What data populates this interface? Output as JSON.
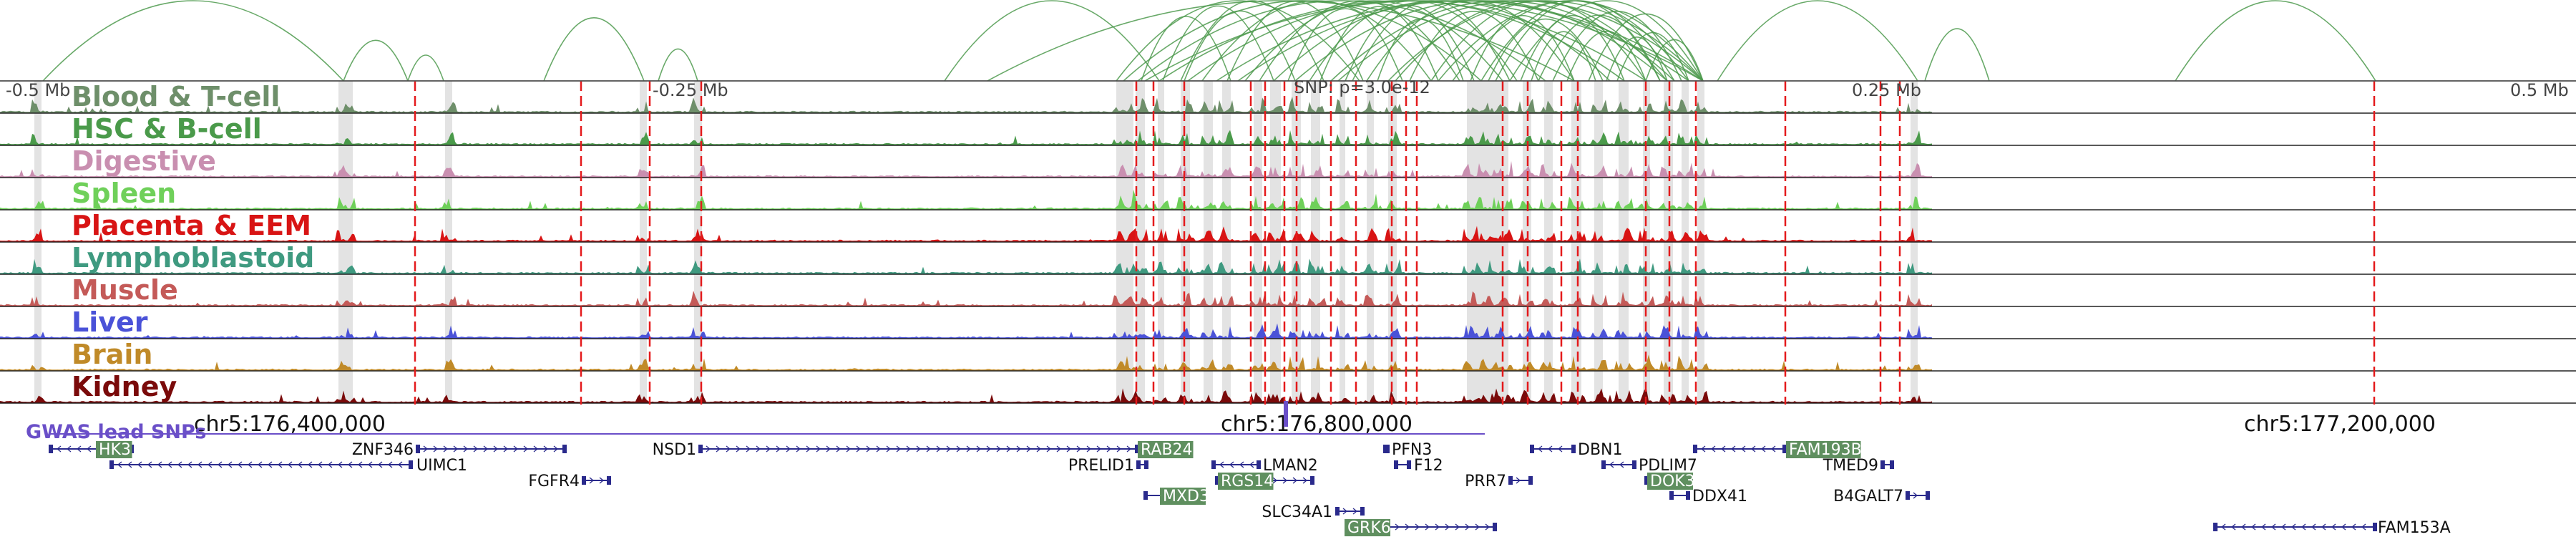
{
  "distance_labels": {
    "left_far": "-0.5 Mb",
    "left_near": "-0.25 Mb",
    "snp": "SNP: p=3.0e-12",
    "right_near": "0.25 Mb",
    "right_far": "0.5 Mb"
  },
  "tracks": [
    {
      "name": "Blood & T-cell",
      "color": "#6e8f6a"
    },
    {
      "name": "HSC & B-cell",
      "color": "#4a9a4a"
    },
    {
      "name": "Digestive",
      "color": "#c98fb0"
    },
    {
      "name": "Spleen",
      "color": "#6fd05a"
    },
    {
      "name": "Placenta & EEM",
      "color": "#d81414"
    },
    {
      "name": "Lymphoblastoid",
      "color": "#3f9a80"
    },
    {
      "name": "Muscle",
      "color": "#c45a58"
    },
    {
      "name": "Liver",
      "color": "#4a52d8"
    },
    {
      "name": "Brain",
      "color": "#c08a28"
    },
    {
      "name": "Kidney",
      "color": "#7a0a0a"
    }
  ],
  "coordinates": {
    "left": "chr5:176,400,000",
    "center": "chr5:176,800,000",
    "right": "chr5:177,200,000"
  },
  "gwas_label": "GWAS lead SNPs",
  "genes": [
    {
      "name": "HK3",
      "highlighted": true
    },
    {
      "name": "ZNF346",
      "highlighted": false
    },
    {
      "name": "UIMC1",
      "highlighted": false
    },
    {
      "name": "FGFR4",
      "highlighted": false
    },
    {
      "name": "NSD1",
      "highlighted": false
    },
    {
      "name": "RAB24",
      "highlighted": true
    },
    {
      "name": "PRELID1",
      "highlighted": false
    },
    {
      "name": "MXD3",
      "highlighted": true
    },
    {
      "name": "LMAN2",
      "highlighted": false
    },
    {
      "name": "RGS14",
      "highlighted": true
    },
    {
      "name": "SLC34A1",
      "highlighted": false
    },
    {
      "name": "GRK6",
      "highlighted": true
    },
    {
      "name": "PFN3",
      "highlighted": false
    },
    {
      "name": "F12",
      "highlighted": false
    },
    {
      "name": "PRR7",
      "highlighted": false
    },
    {
      "name": "DBN1",
      "highlighted": false
    },
    {
      "name": "PDLIM7",
      "highlighted": false
    },
    {
      "name": "DOK3",
      "highlighted": true
    },
    {
      "name": "DDX41",
      "highlighted": false
    },
    {
      "name": "FAM193B",
      "highlighted": true
    },
    {
      "name": "TMED9",
      "highlighted": false
    },
    {
      "name": "B4GALT7",
      "highlighted": false
    },
    {
      "name": "FAM153A",
      "highlighted": false
    }
  ],
  "colors": {
    "arc": "#4e9a4e",
    "snp_line": "#e41a1c",
    "gwas": "#6a4fc8",
    "gene_line": "#2a2a8c",
    "gene_highlight": "#5f8f5f",
    "shade": "#e3e3e3"
  }
}
